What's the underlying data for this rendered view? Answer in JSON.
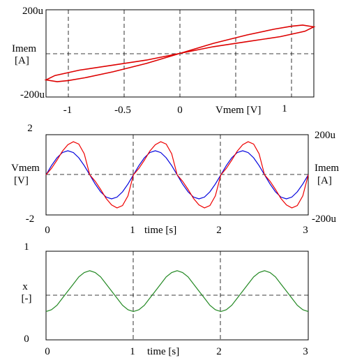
{
  "panels": [
    {
      "id": "hysteresis",
      "y_label_top": "Imem",
      "y_label_bottom": "[A]",
      "x_axis_label": "Vmem [V]",
      "y_ticks": [
        {
          "value": 0.0002,
          "label": "200u"
        },
        {
          "value": -0.0002,
          "label": "-200u"
        }
      ],
      "x_ticks": [
        {
          "value": -1,
          "label": "-1"
        },
        {
          "value": -0.5,
          "label": "-0.5"
        },
        {
          "value": 0,
          "label": "0"
        },
        {
          "value": 1,
          "label": "1"
        }
      ]
    },
    {
      "id": "time-series",
      "y_label_top": "Vmem",
      "y_label_bottom": "[V]",
      "y2_label_top": "Imem",
      "y2_label_bottom": "[A]",
      "x_axis_label": "time [s]",
      "y_ticks": [
        {
          "value": 2,
          "label": "2"
        },
        {
          "value": -2,
          "label": "-2"
        }
      ],
      "y2_ticks": [
        {
          "value": 0.0002,
          "label": "200u"
        },
        {
          "value": -0.0002,
          "label": "-200u"
        }
      ],
      "x_ticks": [
        {
          "value": 0,
          "label": "0"
        },
        {
          "value": 1,
          "label": "1"
        },
        {
          "value": 2,
          "label": "2"
        },
        {
          "value": 3,
          "label": "3"
        }
      ]
    },
    {
      "id": "state",
      "y_label_top": "x",
      "y_label_bottom": "[-]",
      "x_axis_label": "time [s]",
      "y_ticks": [
        {
          "value": 1,
          "label": "1"
        },
        {
          "value": 0,
          "label": "0"
        }
      ],
      "x_ticks": [
        {
          "value": 0,
          "label": "0"
        },
        {
          "value": 1,
          "label": "1"
        },
        {
          "value": 2,
          "label": "2"
        },
        {
          "value": 3,
          "label": "3"
        }
      ]
    }
  ],
  "chart_data": [
    {
      "type": "line",
      "xlim": [
        -1.2,
        1.2
      ],
      "ylim": [
        -0.00026,
        0.00026
      ],
      "xlabel": "Vmem [V]",
      "ylabel": "Imem [A]",
      "grid": "dashed lines at x = -1, -0.5, 0, 1 and y = 0",
      "series": [
        {
          "color": "#dd0000",
          "closed": true,
          "x": [
            0,
            0.3,
            0.6,
            0.85,
            1.0,
            1.1,
            1.2,
            1.12,
            0.9,
            0.6,
            0.3,
            0,
            -0.3,
            -0.6,
            -0.85,
            -1.0,
            -1.1,
            -1.2,
            -1.12,
            -0.9,
            -0.6,
            -0.3,
            0
          ],
          "y": [
            0,
            6e-05,
            0.00011,
            0.000145,
            0.000162,
            0.000169,
            0.000158,
            0.000132,
            0.0001,
            7e-05,
            4e-05,
            0,
            -6e-05,
            -0.00011,
            -0.000145,
            -0.000162,
            -0.000169,
            -0.000158,
            -0.000132,
            -0.0001,
            -7e-05,
            -4e-05,
            0
          ]
        }
      ]
    },
    {
      "type": "line",
      "xlim": [
        0,
        3
      ],
      "ylim": [
        -2,
        2
      ],
      "y2lim": [
        -0.0002,
        0.0002
      ],
      "xlabel": "time [s]",
      "ylabel": "Vmem [V]",
      "y2label": "Imem [A]",
      "grid": "dashed lines at x = 1, 2 and y = 0",
      "series": [
        {
          "color": "#0000dd",
          "axis": "left",
          "x": [
            0,
            0.0625,
            0.125,
            0.1875,
            0.25,
            0.3125,
            0.375,
            0.4375,
            0.5,
            0.5625,
            0.625,
            0.6875,
            0.75,
            0.8125,
            0.875,
            0.9375,
            1,
            1.0625,
            1.125,
            1.1875,
            1.25,
            1.3125,
            1.375,
            1.4375,
            1.5,
            1.5625,
            1.625,
            1.6875,
            1.75,
            1.8125,
            1.875,
            1.9375,
            2,
            2.0625,
            2.125,
            2.1875,
            2.25,
            2.3125,
            2.375,
            2.4375,
            2.5,
            2.5625,
            2.625,
            2.6875,
            2.75,
            2.8125,
            2.875,
            2.9375,
            3
          ],
          "y": [
            0,
            0.46,
            0.85,
            1.11,
            1.2,
            1.11,
            0.85,
            0.46,
            0,
            -0.46,
            -0.85,
            -1.11,
            -1.2,
            -1.11,
            -0.85,
            -0.46,
            0,
            0.46,
            0.85,
            1.11,
            1.2,
            1.11,
            0.85,
            0.46,
            0,
            -0.46,
            -0.85,
            -1.11,
            -1.2,
            -1.11,
            -0.85,
            -0.46,
            0,
            0.46,
            0.85,
            1.11,
            1.2,
            1.11,
            0.85,
            0.46,
            0,
            -0.46,
            -0.85,
            -1.11,
            -1.2,
            -1.11,
            -0.85,
            -0.46,
            0
          ]
        },
        {
          "color": "#ee0000",
          "axis": "right",
          "x": [
            0,
            0.0625,
            0.125,
            0.1875,
            0.25,
            0.3125,
            0.375,
            0.4375,
            0.5,
            0.5625,
            0.625,
            0.6875,
            0.75,
            0.8125,
            0.875,
            0.9375,
            1,
            1.0625,
            1.125,
            1.1875,
            1.25,
            1.3125,
            1.375,
            1.4375,
            1.5,
            1.5625,
            1.625,
            1.6875,
            1.75,
            1.8125,
            1.875,
            1.9375,
            2,
            2.0625,
            2.125,
            2.1875,
            2.25,
            2.3125,
            2.375,
            2.4375,
            2.5,
            2.5625,
            2.625,
            2.6875,
            2.75,
            2.8125,
            2.875,
            2.9375,
            3
          ],
          "y": [
            0,
            3.2e-05,
            7.3e-05,
            0.000118,
            0.00015,
            0.000165,
            0.000153,
            0.000105,
            0,
            -3.2e-05,
            -7.3e-05,
            -0.000118,
            -0.00015,
            -0.000165,
            -0.000153,
            -0.000105,
            0,
            3.2e-05,
            7.3e-05,
            0.000118,
            0.00015,
            0.000165,
            0.000153,
            0.000105,
            0,
            -3.2e-05,
            -7.3e-05,
            -0.000118,
            -0.00015,
            -0.000165,
            -0.000153,
            -0.000105,
            0,
            3.2e-05,
            7.3e-05,
            0.000118,
            0.00015,
            0.000165,
            0.000153,
            0.000105,
            0,
            -3.2e-05,
            -7.3e-05,
            -0.000118,
            -0.00015,
            -0.000165,
            -0.000153,
            -0.000105,
            0
          ]
        }
      ]
    },
    {
      "type": "line",
      "xlim": [
        0,
        3
      ],
      "ylim": [
        0,
        1
      ],
      "xlabel": "time [s]",
      "ylabel": "x [-]",
      "grid": "dashed lines at x = 1, 2 and y = 0.5",
      "series": [
        {
          "color": "#228822",
          "x": [
            0,
            0.0625,
            0.125,
            0.1875,
            0.25,
            0.3125,
            0.375,
            0.4375,
            0.5,
            0.5625,
            0.625,
            0.6875,
            0.75,
            0.8125,
            0.875,
            0.9375,
            1,
            1.0625,
            1.125,
            1.1875,
            1.25,
            1.3125,
            1.375,
            1.4375,
            1.5,
            1.5625,
            1.625,
            1.6875,
            1.75,
            1.8125,
            1.875,
            1.9375,
            2,
            2.0625,
            2.125,
            2.1875,
            2.25,
            2.3125,
            2.375,
            2.4375,
            2.5,
            2.5625,
            2.625,
            2.6875,
            2.75,
            2.8125,
            2.875,
            2.9375,
            3
          ],
          "y": [
            0.32,
            0.34,
            0.39,
            0.47,
            0.55,
            0.63,
            0.71,
            0.76,
            0.78,
            0.76,
            0.71,
            0.63,
            0.55,
            0.47,
            0.39,
            0.34,
            0.32,
            0.34,
            0.39,
            0.47,
            0.55,
            0.63,
            0.71,
            0.76,
            0.78,
            0.76,
            0.71,
            0.63,
            0.55,
            0.47,
            0.39,
            0.34,
            0.32,
            0.34,
            0.39,
            0.47,
            0.55,
            0.63,
            0.71,
            0.76,
            0.78,
            0.76,
            0.71,
            0.63,
            0.55,
            0.47,
            0.39,
            0.34,
            0.32
          ]
        }
      ]
    }
  ]
}
